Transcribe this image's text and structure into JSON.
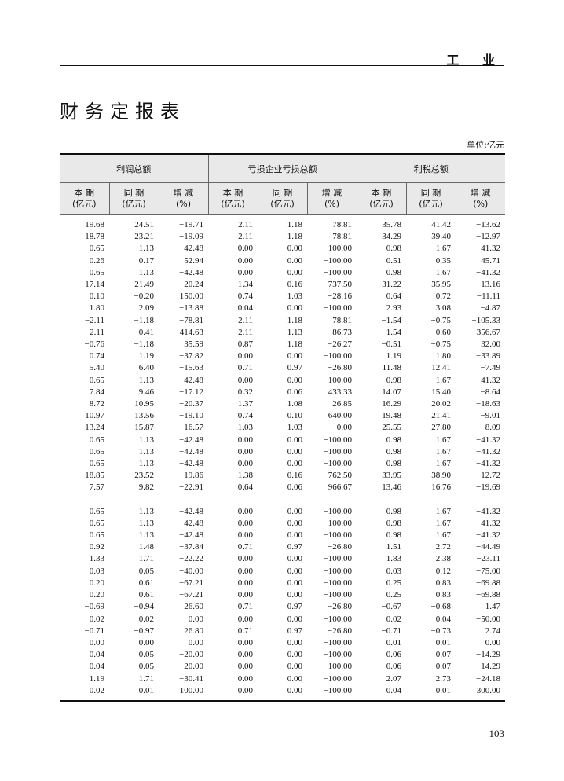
{
  "header": {
    "section": "工 业",
    "title": "财务定报表",
    "unit": "单位:亿元"
  },
  "table": {
    "groups": [
      "利润总额",
      "亏损企业亏损总额",
      "利税总额"
    ],
    "subcolumns": [
      {
        "name": "本 期",
        "unit": "(亿元)"
      },
      {
        "name": "同 期",
        "unit": "(亿元)"
      },
      {
        "name": "增 减",
        "unit": "(%)"
      }
    ],
    "sections": [
      [
        [
          "19.68",
          "24.51",
          "−19.71",
          "2.11",
          "1.18",
          "78.81",
          "35.78",
          "41.42",
          "−13.62"
        ],
        [
          "18.78",
          "23.21",
          "−19.09",
          "2.11",
          "1.18",
          "78.81",
          "34.29",
          "39.40",
          "−12.97"
        ],
        [
          "0.65",
          "1.13",
          "−42.48",
          "0.00",
          "0.00",
          "−100.00",
          "0.98",
          "1.67",
          "−41.32"
        ],
        [
          "0.26",
          "0.17",
          "52.94",
          "0.00",
          "0.00",
          "−100.00",
          "0.51",
          "0.35",
          "45.71"
        ],
        [
          "0.65",
          "1.13",
          "−42.48",
          "0.00",
          "0.00",
          "−100.00",
          "0.98",
          "1.67",
          "−41.32"
        ],
        [
          "17.14",
          "21.49",
          "−20.24",
          "1.34",
          "0.16",
          "737.50",
          "31.22",
          "35.95",
          "−13.16"
        ],
        [
          "0.10",
          "−0.20",
          "150.00",
          "0.74",
          "1.03",
          "−28.16",
          "0.64",
          "0.72",
          "−11.11"
        ],
        [
          "1.80",
          "2.09",
          "−13.88",
          "0.04",
          "0.00",
          "−100.00",
          "2.93",
          "3.08",
          "−4.87"
        ],
        [
          "−2.11",
          "−1.18",
          "−78.81",
          "2.11",
          "1.18",
          "78.81",
          "−1.54",
          "−0.75",
          "−105.33"
        ],
        [
          "−2.11",
          "−0.41",
          "−414.63",
          "2.11",
          "1.13",
          "86.73",
          "−1.54",
          "0.60",
          "−356.67"
        ],
        [
          "−0.76",
          "−1.18",
          "35.59",
          "0.87",
          "1.18",
          "−26.27",
          "−0.51",
          "−0.75",
          "32.00"
        ],
        [
          "0.74",
          "1.19",
          "−37.82",
          "0.00",
          "0.00",
          "−100.00",
          "1.19",
          "1.80",
          "−33.89"
        ],
        [
          "5.40",
          "6.40",
          "−15.63",
          "0.71",
          "0.97",
          "−26.80",
          "11.48",
          "12.41",
          "−7.49"
        ],
        [
          "0.65",
          "1.13",
          "−42.48",
          "0.00",
          "0.00",
          "−100.00",
          "0.98",
          "1.67",
          "−41.32"
        ],
        [
          "7.84",
          "9.46",
          "−17.12",
          "0.32",
          "0.06",
          "433.33",
          "14.07",
          "15.40",
          "−8.64"
        ],
        [
          "8.72",
          "10.95",
          "−20.37",
          "1.37",
          "1.08",
          "26.85",
          "16.29",
          "20.02",
          "−18.63"
        ],
        [
          "10.97",
          "13.56",
          "−19.10",
          "0.74",
          "0.10",
          "640.00",
          "19.48",
          "21.41",
          "−9.01"
        ],
        [
          "13.24",
          "15.87",
          "−16.57",
          "1.03",
          "1.03",
          "0.00",
          "25.55",
          "27.80",
          "−8.09"
        ],
        [
          "0.65",
          "1.13",
          "−42.48",
          "0.00",
          "0.00",
          "−100.00",
          "0.98",
          "1.67",
          "−41.32"
        ],
        [
          "0.65",
          "1.13",
          "−42.48",
          "0.00",
          "0.00",
          "−100.00",
          "0.98",
          "1.67",
          "−41.32"
        ],
        [
          "0.65",
          "1.13",
          "−42.48",
          "0.00",
          "0.00",
          "−100.00",
          "0.98",
          "1.67",
          "−41.32"
        ],
        [
          "18.85",
          "23.52",
          "−19.86",
          "1.38",
          "0.16",
          "762.50",
          "33.95",
          "38.90",
          "−12.72"
        ],
        [
          "7.57",
          "9.82",
          "−22.91",
          "0.64",
          "0.06",
          "966.67",
          "13.46",
          "16.76",
          "−19.69"
        ]
      ],
      [
        [
          "0.65",
          "1.13",
          "−42.48",
          "0.00",
          "0.00",
          "−100.00",
          "0.98",
          "1.67",
          "−41.32"
        ],
        [
          "0.65",
          "1.13",
          "−42.48",
          "0.00",
          "0.00",
          "−100.00",
          "0.98",
          "1.67",
          "−41.32"
        ],
        [
          "0.65",
          "1.13",
          "−42.48",
          "0.00",
          "0.00",
          "−100.00",
          "0.98",
          "1.67",
          "−41.32"
        ],
        [
          "0.92",
          "1.48",
          "−37.84",
          "0.71",
          "0.97",
          "−26.80",
          "1.51",
          "2.72",
          "−44.49"
        ],
        [
          "1.33",
          "1.71",
          "−22.22",
          "0.00",
          "0.00",
          "−100.00",
          "1.83",
          "2.38",
          "−23.11"
        ],
        [
          "0.03",
          "0.05",
          "−40.00",
          "0.00",
          "0.00",
          "−100.00",
          "0.03",
          "0.12",
          "−75.00"
        ],
        [
          "0.20",
          "0.61",
          "−67.21",
          "0.00",
          "0.00",
          "−100.00",
          "0.25",
          "0.83",
          "−69.88"
        ],
        [
          "0.20",
          "0.61",
          "−67.21",
          "0.00",
          "0.00",
          "−100.00",
          "0.25",
          "0.83",
          "−69.88"
        ],
        [
          "−0.69",
          "−0.94",
          "26.60",
          "0.71",
          "0.97",
          "−26.80",
          "−0.67",
          "−0.68",
          "1.47"
        ],
        [
          "0.02",
          "0.02",
          "0.00",
          "0.00",
          "0.00",
          "−100.00",
          "0.02",
          "0.04",
          "−50.00"
        ],
        [
          "−0.71",
          "−0.97",
          "26.80",
          "0.71",
          "0.97",
          "−26.80",
          "−0.71",
          "−0.73",
          "2.74"
        ],
        [
          "0.00",
          "0.00",
          "0.00",
          "0.00",
          "0.00",
          "−100.00",
          "0.01",
          "0.01",
          "0.00"
        ],
        [
          "0.04",
          "0.05",
          "−20.00",
          "0.00",
          "0.00",
          "−100.00",
          "0.06",
          "0.07",
          "−14.29"
        ],
        [
          "0.04",
          "0.05",
          "−20.00",
          "0.00",
          "0.00",
          "−100.00",
          "0.06",
          "0.07",
          "−14.29"
        ],
        [
          "1.19",
          "1.71",
          "−30.41",
          "0.00",
          "0.00",
          "−100.00",
          "2.07",
          "2.73",
          "−24.18"
        ],
        [
          "0.02",
          "0.01",
          "100.00",
          "0.00",
          "0.00",
          "−100.00",
          "0.04",
          "0.01",
          "300.00"
        ]
      ]
    ]
  },
  "footer": {
    "page_number": "103"
  }
}
